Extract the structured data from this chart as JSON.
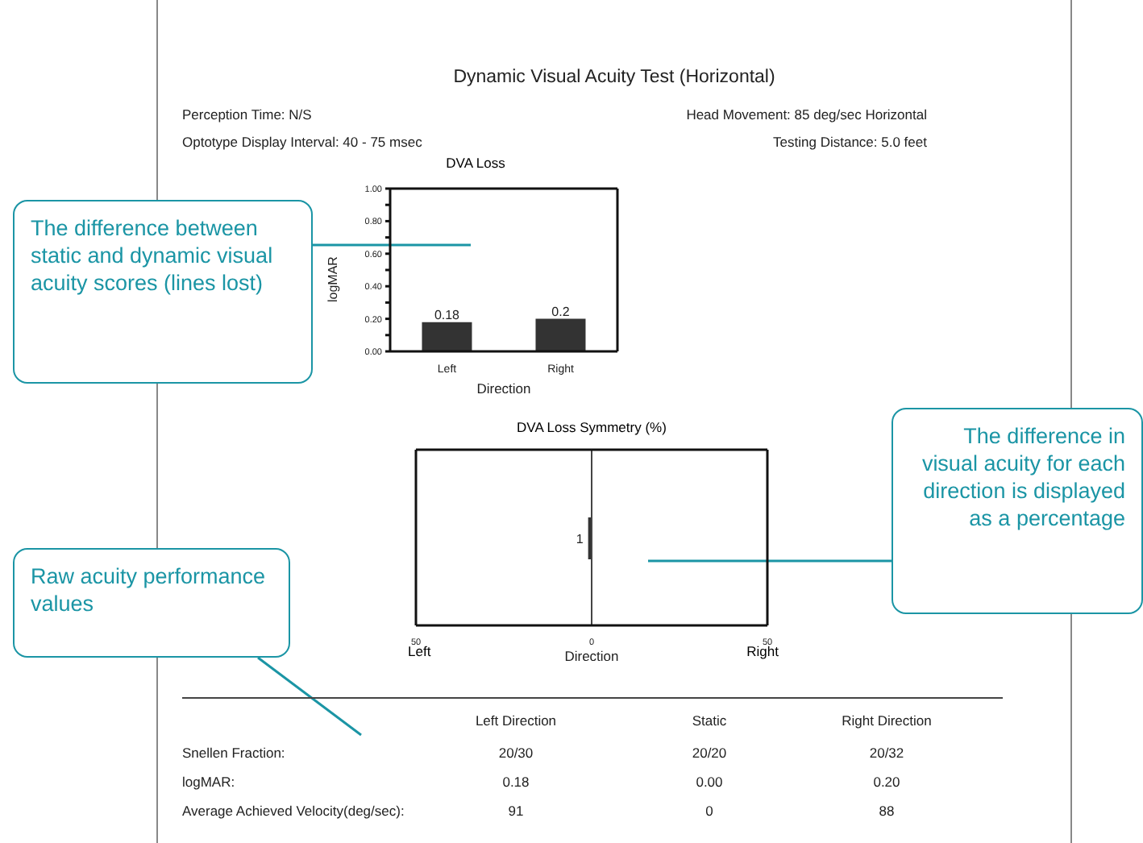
{
  "chart_data": [
    {
      "type": "other",
      "title": "Dynamic Visual Acuity Test (Horizontal)",
      "annotations": [
        "Perception Time: N/S",
        "Head Movement: 85 deg/sec Horizontal",
        "Optotype Display Interval: 40 - 75 msec",
        "Testing Distance: 5.0 feet",
        "The difference between static and dynamic visual acuity scores (lines lost)",
        "The difference in visual acuity for each direction is displayed as a percentage",
        "Raw acuity performance values",
        "Left Direction",
        "Static",
        "Right Direction",
        "Snellen Fraction:",
        "20/30",
        "20/20",
        "20/32",
        "logMAR:",
        "0.18",
        "0.00",
        "0.20",
        "Average Achieved Velocity(deg/sec):",
        "91",
        "0",
        "88"
      ]
    },
    {
      "type": "bar",
      "title": "DVA Loss",
      "xlabel": "Direction",
      "ylabel": "logMAR",
      "categories": [
        "Left",
        "Right"
      ],
      "values": [
        0.18,
        0.2
      ],
      "value_labels": [
        "0.18",
        "0.2"
      ],
      "color": "#333333",
      "ylim": [
        0,
        1
      ],
      "yticks": [
        {
          "value": 0,
          "label": "0.00"
        },
        {
          "value": 0.1,
          "label": null
        },
        {
          "value": 0.2,
          "label": "0.20"
        },
        {
          "value": 0.3,
          "label": null
        },
        {
          "value": 0.4,
          "label": "0.40"
        },
        {
          "value": 0.5,
          "label": null
        },
        {
          "value": 0.6,
          "label": "0.60"
        },
        {
          "value": 0.7,
          "label": null
        },
        {
          "value": 0.8,
          "label": "0.80"
        },
        {
          "value": 0.9,
          "label": null
        },
        {
          "value": 1,
          "label": "1.00"
        }
      ]
    },
    {
      "type": "bar",
      "orientation": "horizontal",
      "title": "DVA Loss Symmetry (%)",
      "xlabel": "Direction",
      "categories": [
        null
      ],
      "values": [
        -1
      ],
      "color": "#333333",
      "xlim": [
        -50,
        50
      ],
      "xticks": [
        {
          "value": -50,
          "label": "50"
        },
        0,
        {
          "value": 50,
          "label": "50"
        }
      ],
      "ref_lines": [
        {
          "axis": "x",
          "value": 0
        }
      ],
      "annotations": [
        "Left",
        "Right",
        {
          "text": "1",
          "x": -1
        }
      ]
    }
  ]
}
